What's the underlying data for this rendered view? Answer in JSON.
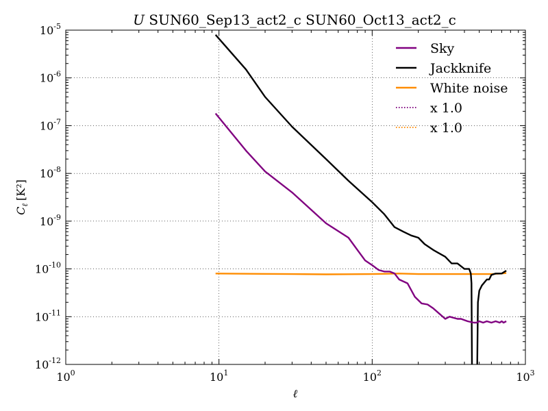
{
  "chart_data": {
    "type": "line",
    "title_var": "U",
    "title": "SUN60_Sep13_act2_c SUN60_Oct13_act2_c",
    "xlabel": "ℓ",
    "ylabel": "C",
    "ylabel_sub": "ℓ",
    "ylabel_unit": "[K²]",
    "xscale": "log",
    "yscale": "log",
    "xlim": [
      1,
      1000
    ],
    "ylim": [
      1e-12,
      1e-05
    ],
    "grid": true,
    "x_tick_labels": [
      {
        "base": "10",
        "exp": "0"
      },
      {
        "base": "10",
        "exp": "1"
      },
      {
        "base": "10",
        "exp": "2"
      },
      {
        "base": "10",
        "exp": "3"
      }
    ],
    "y_tick_labels": [
      {
        "base": "10",
        "exp": "-12"
      },
      {
        "base": "10",
        "exp": "-11"
      },
      {
        "base": "10",
        "exp": "-10"
      },
      {
        "base": "10",
        "exp": "-9"
      },
      {
        "base": "10",
        "exp": "-8"
      },
      {
        "base": "10",
        "exp": "-7"
      },
      {
        "base": "10",
        "exp": "-6"
      },
      {
        "base": "10",
        "exp": "-5"
      }
    ],
    "legend_position": "top-right",
    "series": [
      {
        "name": "Sky",
        "color": "#800080",
        "style": "solid",
        "x": [
          9.5,
          15,
          20,
          30,
          50,
          70,
          80,
          90,
          100,
          110,
          120,
          130,
          140,
          150,
          170,
          190,
          210,
          230,
          250,
          300,
          320,
          360,
          380,
          420,
          460,
          480,
          500,
          530,
          560,
          600,
          640,
          680,
          700,
          720,
          750
        ],
        "y": [
          1.8e-07,
          3e-08,
          1.1e-08,
          4e-09,
          9e-10,
          4.5e-10,
          2.5e-10,
          1.5e-10,
          1.2e-10,
          9.5e-11,
          8.8e-11,
          8.8e-11,
          8e-11,
          6e-11,
          5e-11,
          2.6e-11,
          1.9e-11,
          1.8e-11,
          1.5e-11,
          9e-12,
          1e-11,
          9e-12,
          9e-12,
          8e-12,
          7.5e-12,
          7.5e-12,
          8e-12,
          7.5e-12,
          8e-12,
          7.5e-12,
          8e-12,
          7.5e-12,
          8e-12,
          7.5e-12,
          8e-12
        ]
      },
      {
        "name": "Jackknife",
        "color": "#000000",
        "style": "solid",
        "x": [
          9.5,
          15,
          20,
          30,
          50,
          70,
          100,
          120,
          140,
          160,
          180,
          200,
          220,
          250,
          300,
          330,
          360,
          400,
          430,
          440,
          445,
          448
        ],
        "y": [
          8e-06,
          1.5e-06,
          4e-07,
          9.5e-08,
          2e-08,
          7e-09,
          2.5e-09,
          1.4e-09,
          7.5e-10,
          6e-10,
          5e-10,
          4.5e-10,
          3.3e-10,
          2.5e-10,
          1.8e-10,
          1.3e-10,
          1.3e-10,
          1e-10,
          1e-10,
          8e-11,
          5e-11,
          1e-12
        ],
        "x2": [
          485,
          490,
          500,
          520,
          560,
          580,
          600,
          640,
          700,
          750
        ],
        "y2": [
          1e-12,
          2e-11,
          3.5e-11,
          4.5e-11,
          6e-11,
          6e-11,
          7.5e-11,
          8e-11,
          8e-11,
          9.2e-11
        ]
      },
      {
        "name": "White noise",
        "color": "#FF8C00",
        "style": "solid",
        "x": [
          9.5,
          30,
          50,
          100,
          150,
          200,
          300,
          400,
          500,
          600,
          700,
          750
        ],
        "y": [
          8e-11,
          7.8e-11,
          7.7e-11,
          7.8e-11,
          8e-11,
          7.8e-11,
          7.8e-11,
          7.8e-11,
          7.8e-11,
          7.8e-11,
          8e-11,
          8.2e-11
        ]
      }
    ],
    "legend": [
      {
        "label": "Sky",
        "color": "#800080",
        "style": "solid"
      },
      {
        "label": "Jackknife",
        "color": "#000000",
        "style": "solid"
      },
      {
        "label": "White noise",
        "color": "#FF8C00",
        "style": "solid"
      },
      {
        "label": "x 1.0",
        "color": "#800080",
        "style": "dotted"
      },
      {
        "label": "x 1.0",
        "color": "#FF8C00",
        "style": "dotted"
      }
    ]
  }
}
